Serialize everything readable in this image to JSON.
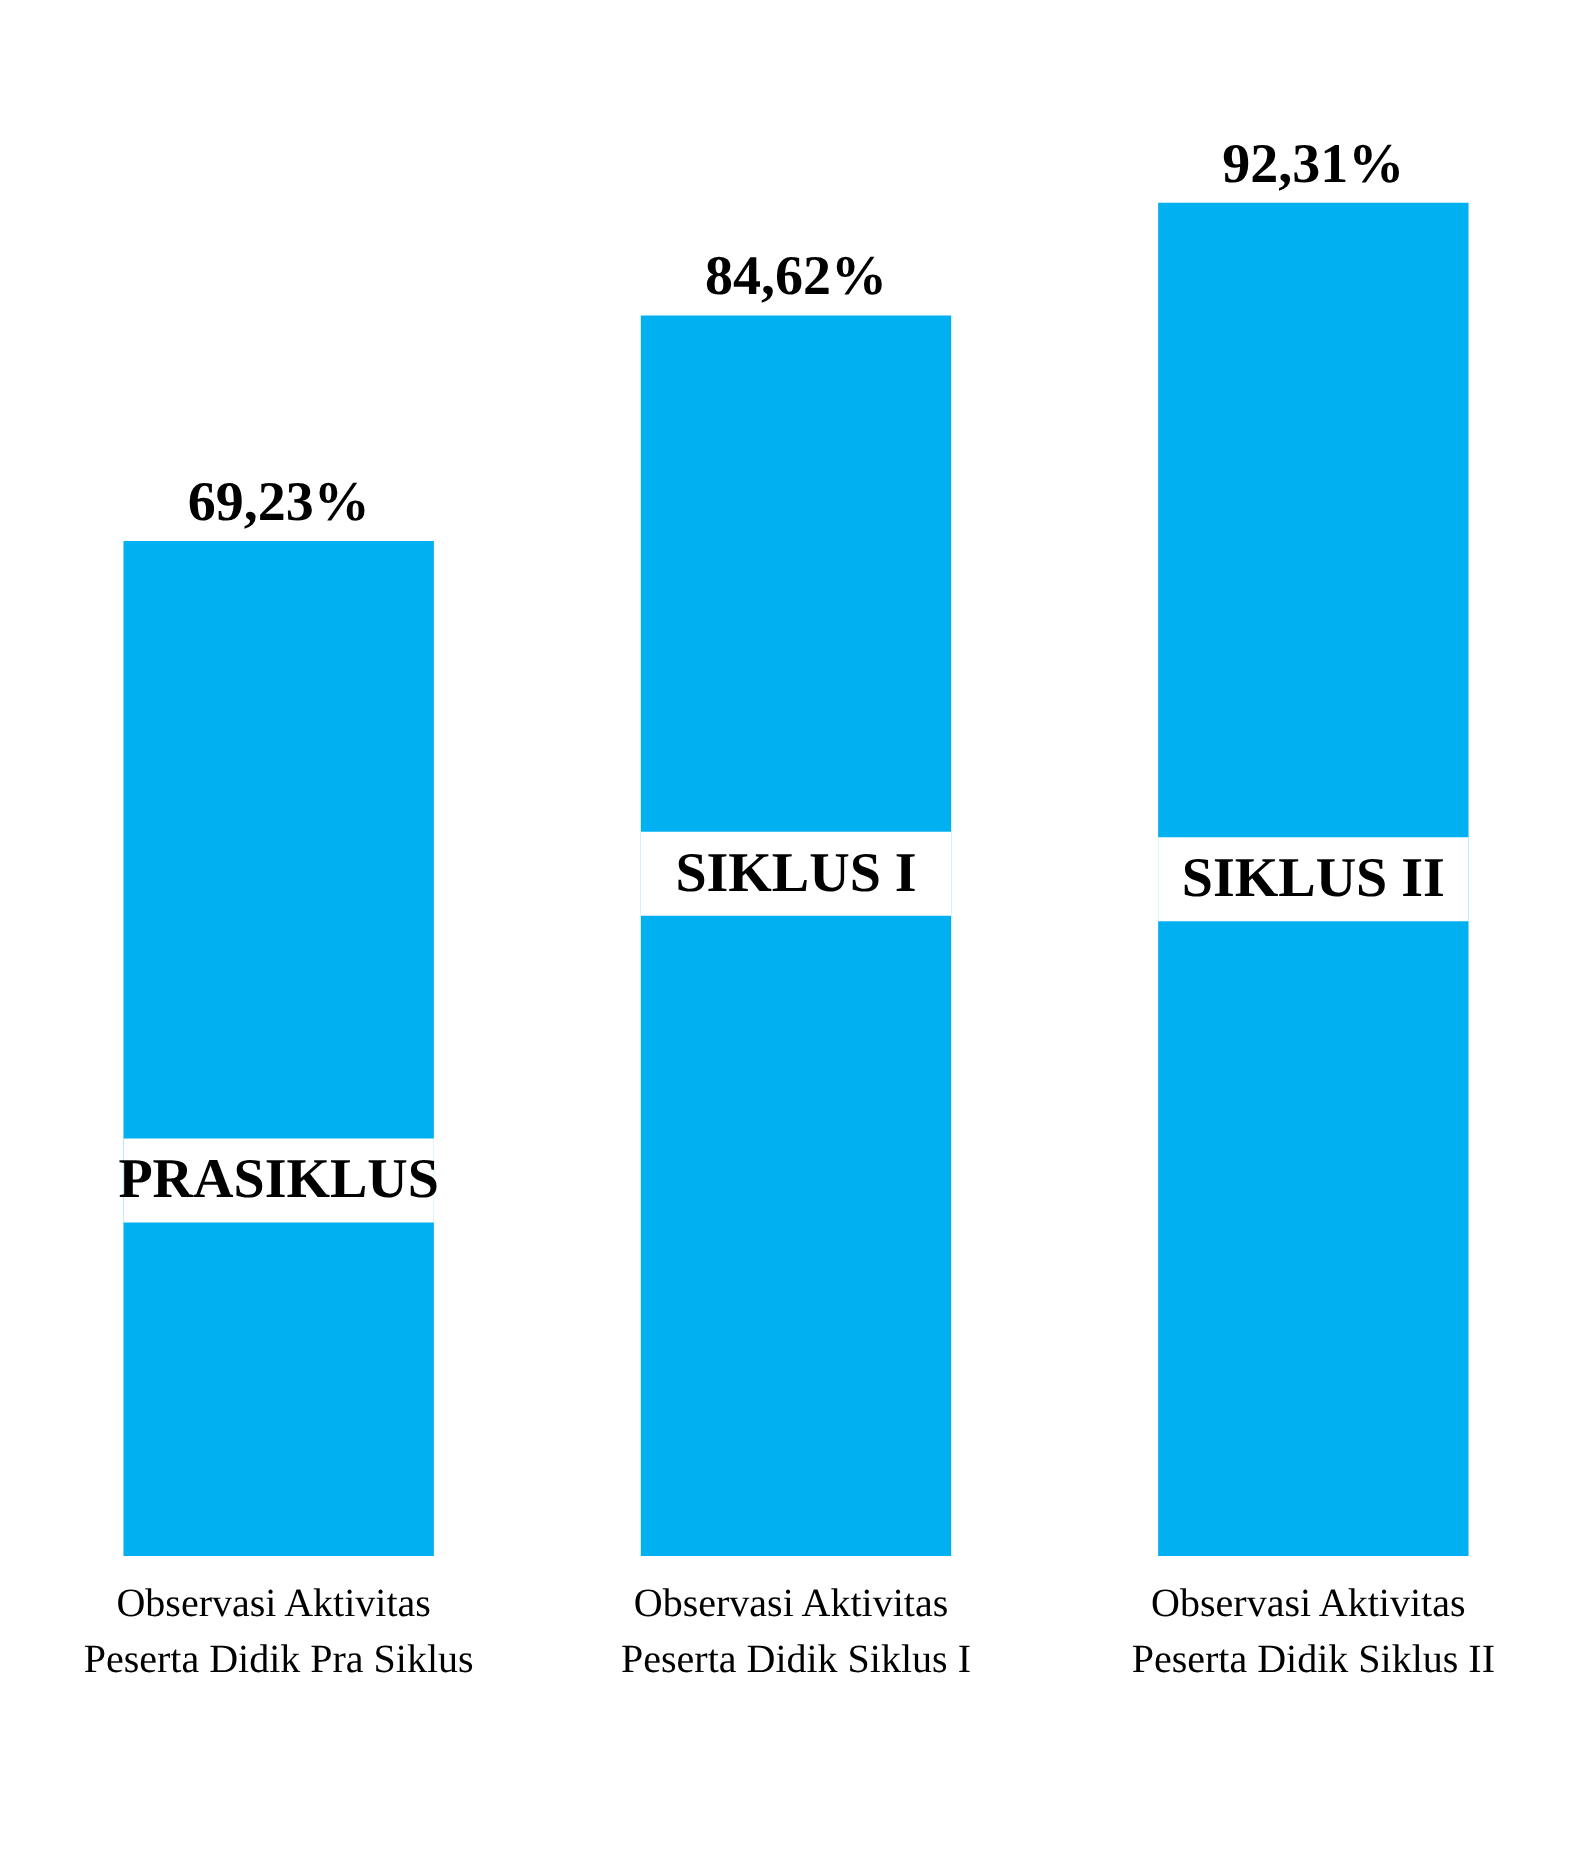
{
  "chart_data": {
    "type": "bar",
    "categories": [
      "Observasi Aktivitas Peserta Didik Pra Siklus",
      "Observasi Aktivitas Peserta Didik Siklus I",
      "Observasi Aktivitas Peserta Didik Siklus II"
    ],
    "values": [
      69.23,
      84.62,
      92.31
    ],
    "value_labels": [
      "69,23%",
      "84,62%",
      "92,31%"
    ],
    "color": "#00b0f0",
    "tick_labels": "x",
    "grid": false,
    "annotations": [
      "PRASIKLUS",
      "SIKLUS I",
      "SIKLUS II"
    ]
  }
}
